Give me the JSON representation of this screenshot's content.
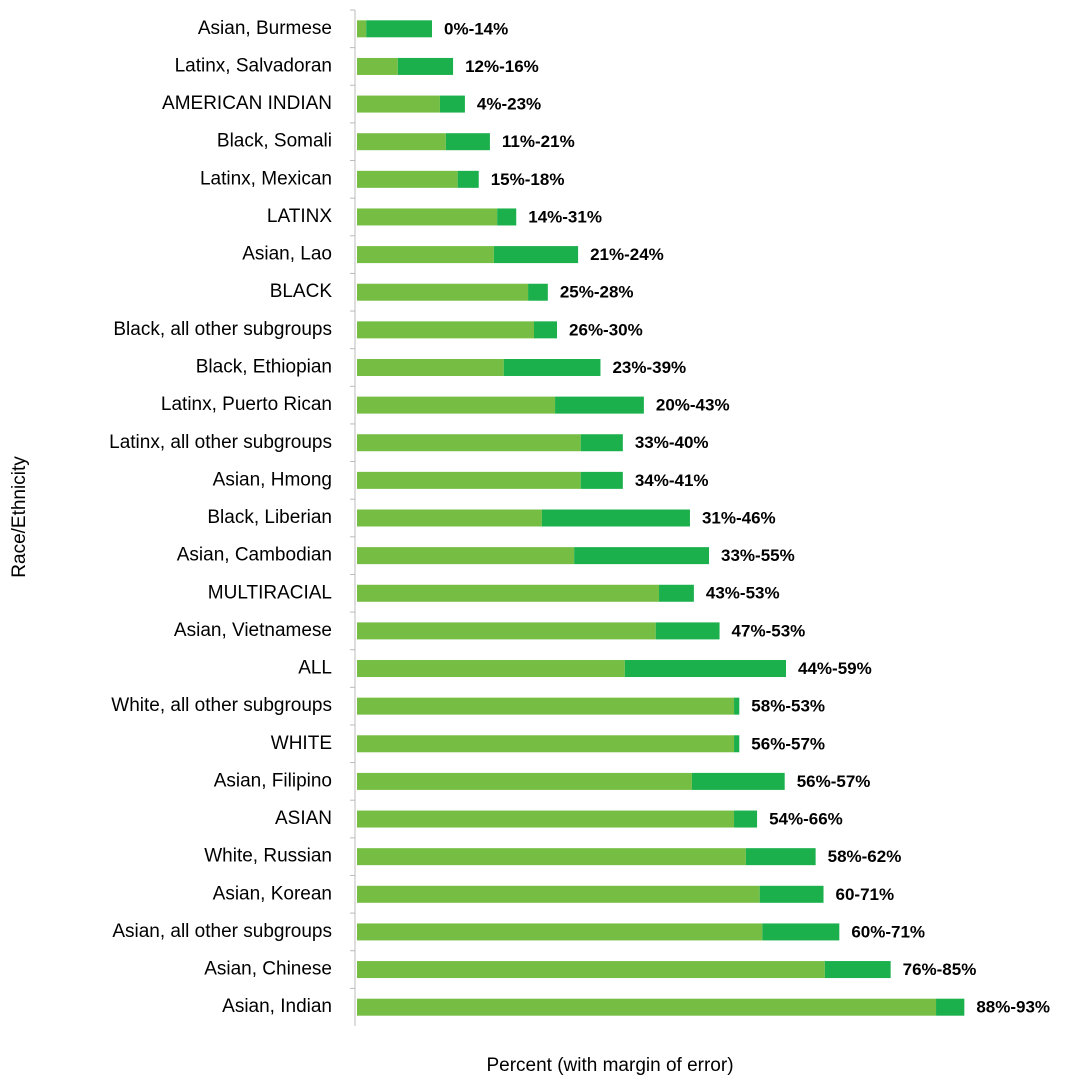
{
  "chart_data": {
    "type": "stacked_barh",
    "y_label": "Race/Ethnicity",
    "x_label": "Percent (with margin of error)",
    "categories": [
      "Asian, Burmese",
      "Latinx, Salvadoran",
      "AMERICAN INDIAN",
      "Black, Somali",
      "Latinx, Mexican",
      "LATINX",
      "Asian, Lao",
      "BLACK",
      "Black, all other subgroups",
      "Black, Ethiopian",
      "Latinx, Puerto Rican",
      "Latinx, all other subgroups",
      "Asian, Hmong",
      "Black, Liberian",
      "Asian, Cambodian",
      "MULTIRACIAL",
      "Asian, Vietnamese",
      "ALL",
      "White, all other subgroups",
      "WHITE",
      "Asian, Filipino",
      "ASIAN",
      "White, Russian",
      "Asian, Korean",
      "Asian, all other subgroups",
      "Asian, Chinese",
      "Asian, Indian"
    ],
    "series": [
      {
        "color": "#76bd43",
        "values": [
          1.4,
          6.2,
          12.6,
          13.5,
          15.3,
          21.3,
          20.8,
          26.0,
          26.9,
          22.3,
          30.1,
          34.0,
          34.0,
          28.1,
          33.0,
          45.9,
          45.4,
          40.7,
          57.3,
          57.3,
          50.9,
          57.3,
          59.1,
          61.2,
          61.6,
          71.1,
          88.0
        ]
      },
      {
        "color": "#1bb04c",
        "values": [
          10.0,
          8.4,
          3.8,
          6.7,
          3.2,
          2.9,
          12.8,
          3.0,
          3.5,
          14.7,
          13.5,
          6.4,
          6.4,
          22.5,
          20.5,
          5.3,
          9.7,
          24.5,
          0.8,
          0.8,
          14.1,
          3.5,
          10.6,
          9.7,
          11.7,
          10.0,
          4.3
        ]
      }
    ],
    "annotations": [
      "0%-14%",
      "12%-16%",
      "4%-23%",
      "11%-21%",
      "15%-18%",
      "14%-31%",
      "21%-24%",
      "25%-28%",
      "26%-30%",
      "23%-39%",
      "20%-43%",
      "33%-40%",
      "34%-41%",
      "31%-46%",
      "33%-55%",
      "43%-53%",
      "47%-53%",
      "44%-59%",
      "58%-53%",
      "56%-57%",
      "56%-57%",
      "54%-66%",
      "58%-62%",
      "60-71%",
      "60%-71%",
      "76%-85%",
      "88%-93%"
    ],
    "xlim": [
      0,
      100
    ]
  }
}
